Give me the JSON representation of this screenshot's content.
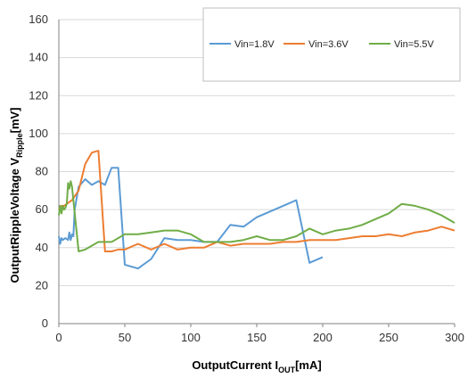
{
  "chart_data": {
    "type": "line",
    "title": "",
    "xlabel": {
      "main": "OutputCurrent  I",
      "sub": "OUT",
      "suffix": "[mA]"
    },
    "ylabel": {
      "main": "OutputRippleVoltage  V",
      "sub": "Ripple",
      "suffix": "[mV]"
    },
    "xlim": [
      0,
      300
    ],
    "ylim": [
      0,
      160
    ],
    "xticks": [
      0,
      50,
      100,
      150,
      200,
      250,
      300
    ],
    "yticks": [
      0,
      20,
      40,
      60,
      80,
      100,
      120,
      140,
      160
    ],
    "grid": "horizontal",
    "legend_position": "top-right",
    "series": [
      {
        "name": "Vin=1.8V",
        "color": "#5B9BD5",
        "x": [
          0,
          1,
          2,
          3,
          5,
          7,
          8,
          9,
          10,
          11,
          12,
          15,
          20,
          25,
          30,
          35,
          40,
          45,
          50,
          60,
          70,
          80,
          90,
          100,
          110,
          120,
          130,
          140,
          150,
          160,
          170,
          180,
          190,
          200
        ],
        "y": [
          46,
          42,
          45,
          44,
          45,
          44,
          48,
          44,
          47,
          46,
          60,
          72,
          76,
          73,
          75,
          73,
          82,
          82,
          31,
          29,
          34,
          45,
          44,
          44,
          43,
          43,
          52,
          51,
          56,
          59,
          62,
          65,
          32,
          35
        ]
      },
      {
        "name": "Vin=3.6V",
        "color": "#ED7D31",
        "x": [
          0,
          2,
          4,
          6,
          8,
          10,
          12,
          15,
          20,
          25,
          30,
          35,
          40,
          45,
          50,
          60,
          70,
          80,
          90,
          100,
          110,
          120,
          130,
          140,
          150,
          160,
          170,
          180,
          190,
          200,
          210,
          220,
          230,
          240,
          250,
          260,
          270,
          280,
          290,
          300
        ],
        "y": [
          60,
          62,
          62,
          63,
          64,
          65,
          67,
          70,
          84,
          90,
          91,
          38,
          38,
          39,
          39,
          42,
          39,
          42,
          39,
          40,
          40,
          43,
          41,
          42,
          42,
          42,
          43,
          43,
          44,
          44,
          44,
          45,
          46,
          46,
          47,
          46,
          48,
          49,
          51,
          49
        ]
      },
      {
        "name": "Vin=5.5V",
        "color": "#70AD47",
        "x": [
          0,
          1,
          2,
          3,
          4,
          5,
          6,
          7,
          8,
          9,
          10,
          11,
          15,
          20,
          30,
          40,
          50,
          60,
          70,
          80,
          90,
          100,
          110,
          120,
          130,
          140,
          150,
          160,
          170,
          180,
          190,
          200,
          210,
          220,
          230,
          240,
          250,
          260,
          270,
          280,
          290,
          300
        ],
        "y": [
          57,
          62,
          58,
          62,
          60,
          61,
          63,
          74,
          71,
          75,
          72,
          65,
          38,
          39,
          43,
          43,
          47,
          47,
          48,
          49,
          49,
          47,
          43,
          43,
          43,
          44,
          46,
          44,
          44,
          46,
          50,
          47,
          49,
          50,
          52,
          55,
          58,
          63,
          62,
          60,
          57,
          53
        ]
      }
    ]
  }
}
